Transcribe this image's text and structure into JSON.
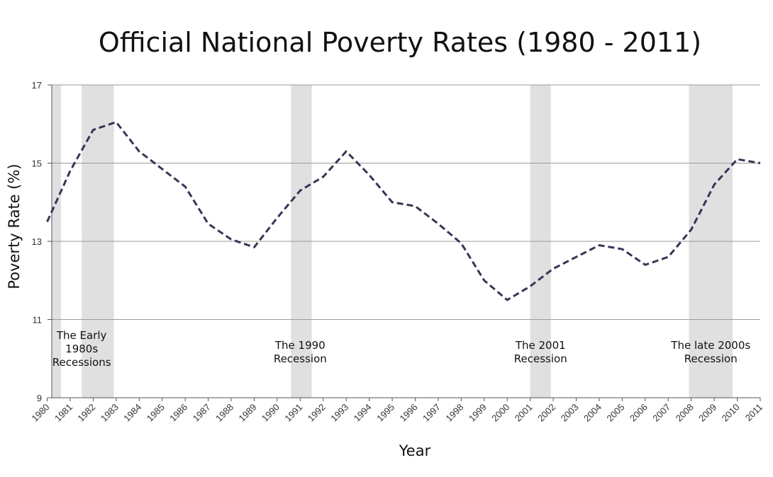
{
  "chart_data": {
    "type": "line",
    "title": "Official National Poverty Rates (1980 - 2011)",
    "xlabel": "Year",
    "ylabel": "Poverty Rate (%)",
    "ylim": [
      9,
      17
    ],
    "yticks": [
      "9",
      "11",
      "13",
      "15",
      "17"
    ],
    "grid": true,
    "x": [
      "1980",
      "1981",
      "1982",
      "1983",
      "1984",
      "1985",
      "1986",
      "1987",
      "1988",
      "1989",
      "1990",
      "1991",
      "1992",
      "1993",
      "1994",
      "1995",
      "1996",
      "1997",
      "1998",
      "1999",
      "2000",
      "2001",
      "2002",
      "2003",
      "2004",
      "2005",
      "2006",
      "2007",
      "2008",
      "2009",
      "2010",
      "2011"
    ],
    "series": [
      {
        "values": [
          13.5,
          14.8,
          15.85,
          16.05,
          15.3,
          14.85,
          14.4,
          13.45,
          13.05,
          12.85,
          13.6,
          14.3,
          14.65,
          15.3,
          14.7,
          14.0,
          13.9,
          13.45,
          12.95,
          12.0,
          11.5,
          11.85,
          12.3,
          12.6,
          12.9,
          12.8,
          12.4,
          12.6,
          13.3,
          14.45,
          15.1,
          15.0
        ],
        "color": "#3b3355",
        "style": "dashed"
      }
    ],
    "recessions": [
      {
        "start": 1980.0,
        "end": 1980.6,
        "label_lines": []
      },
      {
        "start": 1981.5,
        "end": 1982.9,
        "label_lines": [
          "The Early",
          "1980s",
          "Recessions"
        ],
        "label_x": 1981.5
      },
      {
        "start": 1990.6,
        "end": 1991.5,
        "label_lines": [
          "The 1990",
          "Recession"
        ],
        "label_x": 1991.0
      },
      {
        "start": 2001.0,
        "end": 2001.9,
        "label_lines": [
          "The 2001",
          "Recession"
        ],
        "label_x": 2001.45
      },
      {
        "start": 2007.9,
        "end": 2009.8,
        "label_lines": [
          "The late 2000s",
          "Recession"
        ],
        "label_x": 2008.85
      }
    ],
    "colors": {
      "recession_band": "#e0e0e0",
      "grid": "#9a9a9a",
      "axis": "#555555"
    }
  }
}
